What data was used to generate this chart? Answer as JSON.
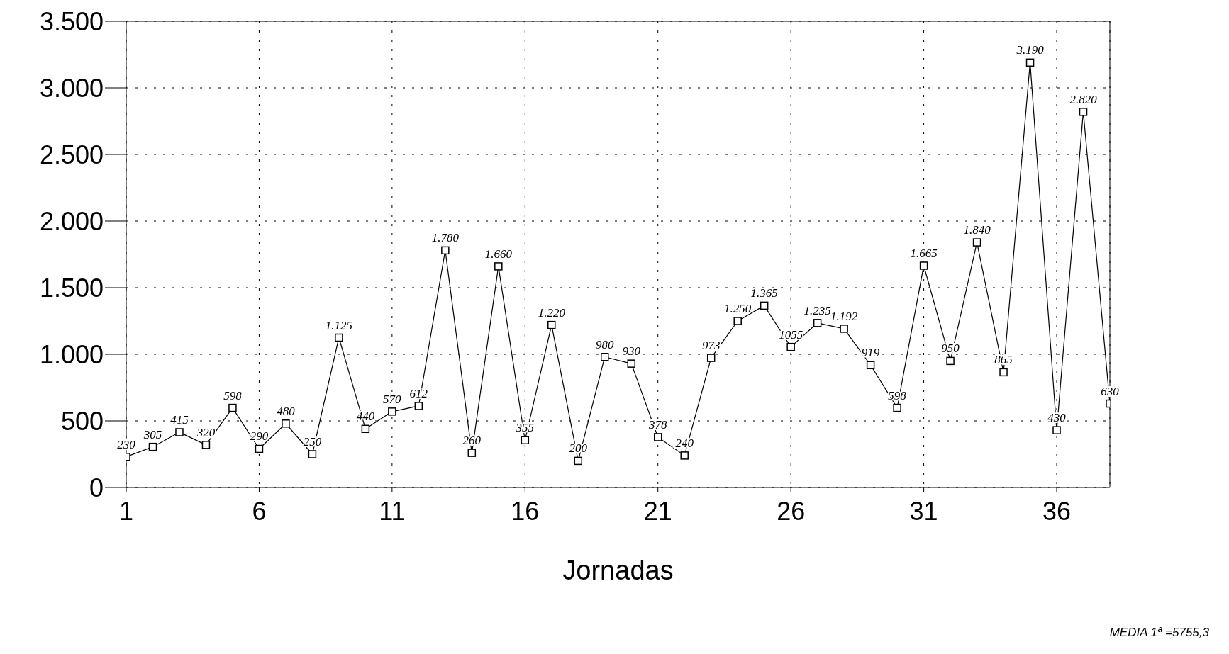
{
  "chart_data": {
    "type": "line",
    "xlabel": "Jornadas",
    "x": [
      1,
      2,
      3,
      4,
      5,
      6,
      7,
      8,
      9,
      10,
      11,
      12,
      13,
      14,
      15,
      16,
      17,
      18,
      19,
      20,
      21,
      22,
      23,
      24,
      25,
      26,
      27,
      28,
      29,
      30,
      31,
      32,
      33,
      34,
      35,
      36,
      37,
      38
    ],
    "values": [
      230,
      305,
      415,
      320,
      598,
      290,
      480,
      250,
      1125,
      440,
      570,
      612,
      1780,
      260,
      1660,
      355,
      1220,
      200,
      980,
      930,
      378,
      240,
      973,
      1250,
      1365,
      1055,
      1235,
      1192,
      919,
      598,
      1665,
      950,
      1840,
      865,
      3190,
      430,
      2820,
      630
    ],
    "value_labels": [
      "230",
      "305",
      "415",
      "320",
      "598",
      "290",
      "480",
      "250",
      "1.125",
      "440",
      "570",
      "612",
      "1.780",
      "260",
      "1.660",
      "355",
      "1.220",
      "200",
      "980",
      "930",
      "378",
      "240",
      "973",
      "1.250",
      "1.365",
      "1055",
      "1.235",
      "1.192",
      "919",
      "598",
      "1.665",
      "950",
      "1.840",
      "865",
      "3.190",
      "430",
      "2.820",
      "630"
    ],
    "color": "#000000",
    "marker": "square",
    "line_style": "solid",
    "grid": true,
    "xlim": [
      1,
      38
    ],
    "xticks": [
      1,
      6,
      11,
      16,
      21,
      26,
      31,
      36
    ],
    "ylim": [
      0,
      3500
    ],
    "yticks": [
      0,
      500,
      {
        "value": 1000,
        "label": "1.000"
      },
      {
        "value": 1500,
        "label": "1.500"
      },
      {
        "value": 2000,
        "label": "2.000"
      },
      {
        "value": 2500,
        "label": "2.500"
      },
      {
        "value": 3000,
        "label": "3.000"
      },
      {
        "value": 3500,
        "label": "3.500"
      }
    ],
    "annotations": [
      "MEDIA 1ª =5755,3"
    ]
  }
}
